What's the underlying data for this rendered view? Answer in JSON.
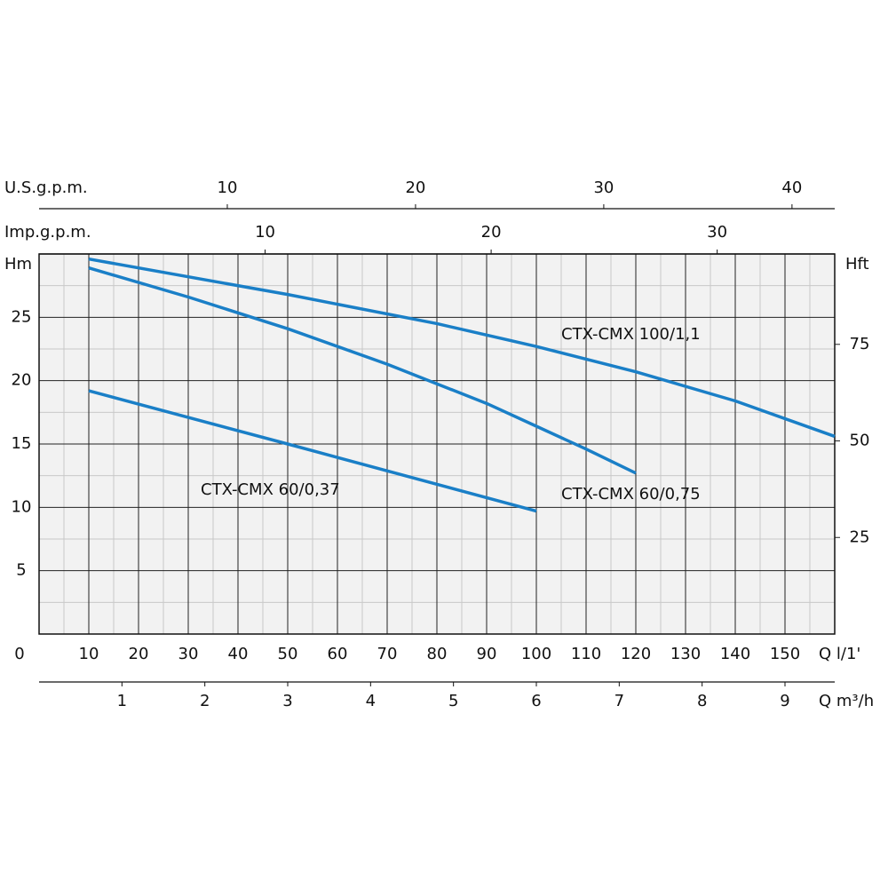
{
  "chart_data": {
    "type": "line",
    "x_label": "Q l/1'",
    "y_label": "Hm",
    "y2_label": "Hft",
    "xlim": [
      0,
      160
    ],
    "xticks": [
      0,
      10,
      20,
      30,
      40,
      50,
      60,
      70,
      80,
      90,
      100,
      110,
      120,
      130,
      140,
      150
    ],
    "ylim": [
      0,
      30
    ],
    "yticks": [
      5,
      10,
      15,
      20,
      25
    ],
    "y2lim": [
      0,
      98.4
    ],
    "y2ticks": [
      25,
      50,
      75
    ],
    "grid": true,
    "secondary_x_axes": [
      {
        "label": "Q m³/h",
        "position": "bottom",
        "xlim": [
          0,
          9.6
        ],
        "xticks": [
          1,
          2,
          3,
          4,
          5,
          6,
          7,
          8,
          9
        ]
      },
      {
        "label": "U.S.g.p.m.",
        "position": "top",
        "xlim": [
          0,
          42.27
        ],
        "xticks": [
          10,
          20,
          30,
          40
        ]
      },
      {
        "label": "Imp.g.p.m.",
        "position": "top",
        "xlim": [
          0,
          35.2
        ],
        "xticks": [
          10,
          20,
          30
        ]
      }
    ],
    "series": [
      {
        "name": "CTX-CMX 100/1,1",
        "color": "#1a7fc7",
        "x": [
          10,
          50,
          80,
          100,
          120,
          140,
          160
        ],
        "values": [
          29.6,
          26.8,
          24.5,
          22.7,
          20.7,
          18.4,
          15.6
        ]
      },
      {
        "name": "CTX-CMX 60/0,75",
        "color": "#1a7fc7",
        "x": [
          10,
          30,
          50,
          70,
          90,
          100,
          110,
          120
        ],
        "values": [
          28.9,
          26.6,
          24.1,
          21.3,
          18.2,
          16.4,
          14.6,
          12.7
        ]
      },
      {
        "name": "CTX-CMX 60/0,37",
        "color": "#1a7fc7",
        "x": [
          10,
          50,
          100
        ],
        "values": [
          19.2,
          15.0,
          9.7
        ]
      }
    ]
  }
}
